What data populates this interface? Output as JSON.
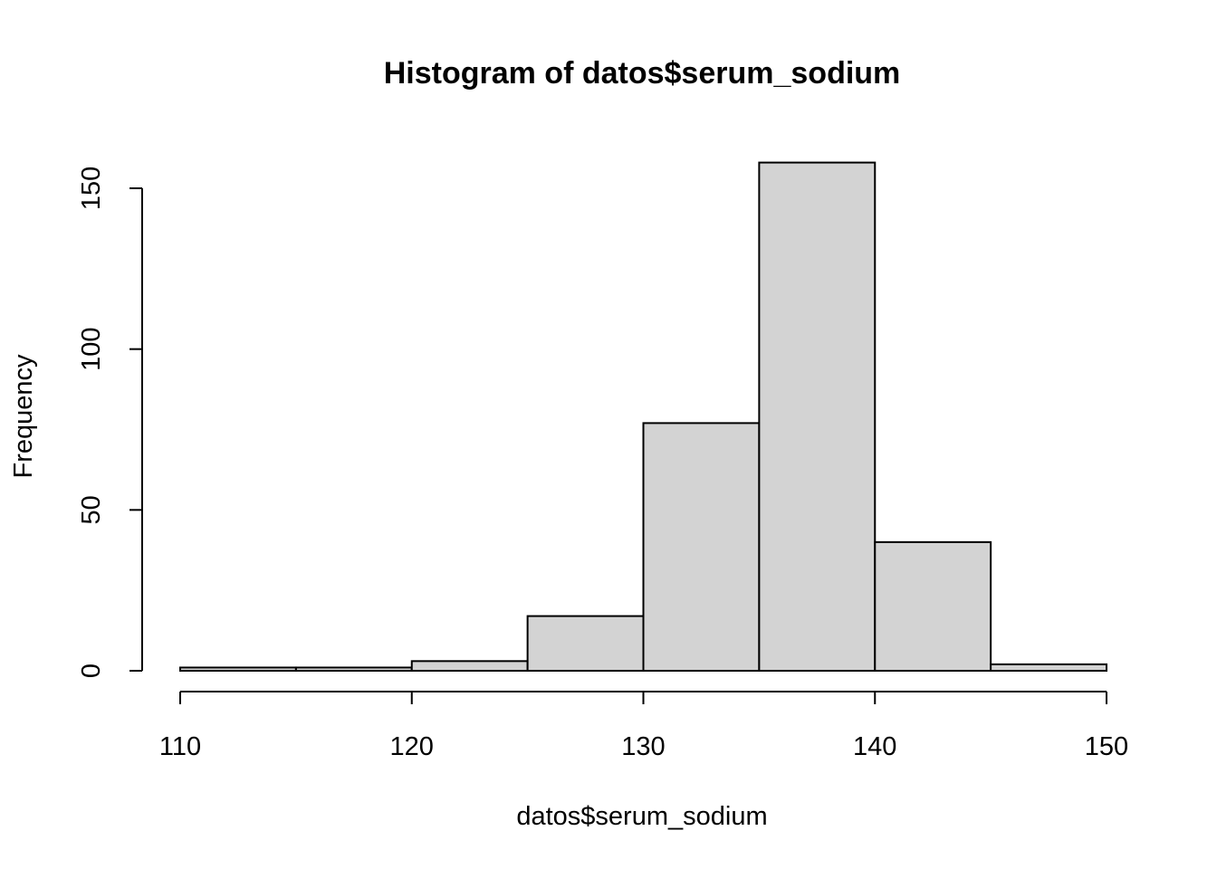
{
  "chart_data": {
    "type": "bar",
    "title": "Histogram of datos$serum_sodium",
    "xlabel": "datos$serum_sodium",
    "ylabel": "Frequency",
    "bin_edges": [
      110,
      115,
      120,
      125,
      130,
      135,
      140,
      145,
      150
    ],
    "values": [
      1,
      1,
      3,
      17,
      77,
      158,
      40,
      2
    ],
    "xlim": [
      110,
      150
    ],
    "ylim": [
      0,
      158
    ],
    "x_ticks": [
      110,
      120,
      130,
      140,
      150
    ],
    "y_ticks": [
      0,
      50,
      100,
      150
    ],
    "bar_fill": "#d3d3d3",
    "bar_stroke": "#000000",
    "grid": false,
    "legend": "none"
  }
}
